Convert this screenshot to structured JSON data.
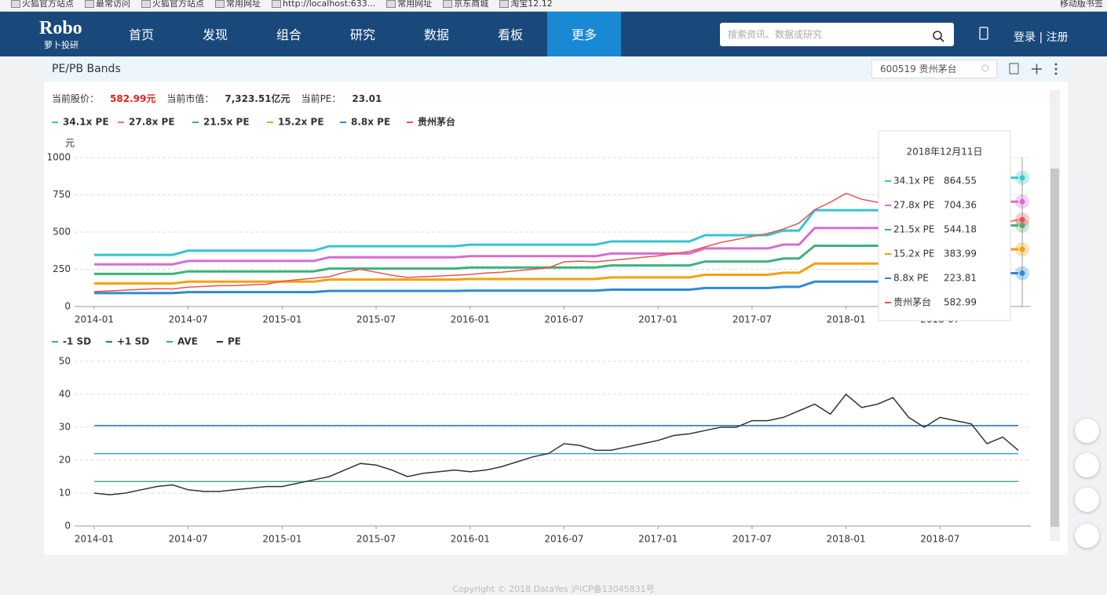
{
  "bookmarks": {
    "items": [
      "火狐官方站点",
      "最常访问",
      "火狐官方站点",
      "常用网址",
      "http://localhost:633...",
      "常用网址",
      "京东商城",
      "淘宝12.12"
    ],
    "right": "移动版书签"
  },
  "nav": {
    "logo": "Robo",
    "logo_sub": "萝卜投研",
    "items": [
      "首页",
      "发现",
      "组合",
      "研究",
      "数据",
      "看板",
      "更多"
    ],
    "search_placeholder": "搜索资讯、数据或研究",
    "login": "登录",
    "separator": "|",
    "register": "注册"
  },
  "panel": {
    "title": "PE/PB Bands",
    "stock": "600519 贵州茅台",
    "info": [
      {
        "label": "当前股价：",
        "value": "582.99元"
      },
      {
        "label": "当前市值：",
        "value": "7,323.51亿元"
      },
      {
        "label": "当前PE：",
        "value": "23.01"
      }
    ]
  },
  "chart_data": [
    {
      "type": "line",
      "ylabel": "元",
      "grid": true,
      "legend": "top-left",
      "tooltip_title": "2018年12月11日",
      "categories": [
        "2014-01",
        null,
        null,
        null,
        null,
        null,
        "2014-07",
        null,
        null,
        null,
        null,
        null,
        "2015-01",
        null,
        null,
        null,
        null,
        null,
        "2015-07",
        null,
        null,
        null,
        null,
        null,
        "2016-01",
        null,
        null,
        null,
        null,
        null,
        "2016-07",
        null,
        null,
        null,
        null,
        null,
        "2017-01",
        null,
        null,
        null,
        null,
        null,
        "2017-07",
        null,
        null,
        null,
        null,
        null,
        "2018-01",
        null,
        null,
        null,
        null,
        null,
        "2018-07",
        null,
        null,
        null,
        null,
        null
      ],
      "ylim": [
        0,
        1000
      ],
      "yticks": [
        0,
        250,
        500,
        750,
        1000
      ],
      "series": [
        {
          "name": "34.1x PE",
          "color": "#36c5cb",
          "values": [
            347,
            347,
            347,
            347,
            347,
            347,
            375,
            375,
            375,
            375,
            375,
            375,
            375,
            375,
            375,
            405,
            405,
            405,
            405,
            405,
            405,
            405,
            405,
            405,
            415,
            415,
            415,
            415,
            415,
            415,
            415,
            415,
            415,
            437,
            437,
            437,
            437,
            437,
            437,
            479,
            479,
            479,
            479,
            479,
            510,
            510,
            647,
            647,
            647,
            647,
            647,
            647,
            864.55,
            864.55,
            864.55,
            864.55,
            864.55,
            864.55,
            864.55,
            864.55
          ]
        },
        {
          "name": "27.8x PE",
          "color": "#d66dd1",
          "values": [
            283,
            283,
            283,
            283,
            283,
            283,
            306,
            306,
            306,
            306,
            306,
            306,
            306,
            306,
            306,
            330,
            330,
            330,
            330,
            330,
            330,
            330,
            330,
            330,
            338,
            338,
            338,
            338,
            338,
            338,
            338,
            338,
            338,
            356,
            356,
            356,
            356,
            356,
            356,
            390,
            390,
            390,
            390,
            390,
            416,
            416,
            527,
            527,
            527,
            527,
            527,
            527,
            704.36,
            704.36,
            704.36,
            704.36,
            704.36,
            704.36,
            704.36,
            704.36
          ]
        },
        {
          "name": "21.5x PE",
          "color": "#3cb37a",
          "values": [
            219,
            219,
            219,
            219,
            219,
            219,
            236,
            236,
            236,
            236,
            236,
            236,
            236,
            236,
            236,
            255,
            255,
            255,
            255,
            255,
            255,
            255,
            255,
            255,
            262,
            262,
            262,
            262,
            262,
            262,
            262,
            262,
            262,
            276,
            276,
            276,
            276,
            276,
            276,
            302,
            302,
            302,
            302,
            302,
            322,
            322,
            408,
            408,
            408,
            408,
            408,
            408,
            544.18,
            544.18,
            544.18,
            544.18,
            544.18,
            544.18,
            544.18,
            544.18
          ]
        },
        {
          "name": "15.2x PE",
          "color": "#f5a00c",
          "values": [
            155,
            155,
            155,
            155,
            155,
            155,
            167,
            167,
            167,
            167,
            167,
            167,
            167,
            167,
            167,
            181,
            181,
            181,
            181,
            181,
            181,
            181,
            181,
            181,
            185,
            185,
            185,
            185,
            185,
            185,
            185,
            185,
            185,
            195,
            195,
            195,
            195,
            195,
            195,
            213,
            213,
            213,
            213,
            213,
            227,
            227,
            288,
            288,
            288,
            288,
            288,
            288,
            383.99,
            383.99,
            383.99,
            383.99,
            383.99,
            383.99,
            383.99,
            383.99
          ]
        },
        {
          "name": "8.8x PE",
          "color": "#2d8ad6",
          "values": [
            90,
            90,
            90,
            90,
            90,
            90,
            97,
            97,
            97,
            97,
            97,
            97,
            97,
            97,
            97,
            105,
            105,
            105,
            105,
            105,
            105,
            105,
            105,
            105,
            107,
            107,
            107,
            107,
            107,
            107,
            107,
            107,
            107,
            113,
            113,
            113,
            113,
            113,
            113,
            124,
            124,
            124,
            124,
            124,
            132,
            132,
            167,
            167,
            167,
            167,
            167,
            167,
            223.81,
            223.81,
            223.81,
            223.81,
            223.81,
            223.81,
            223.81,
            223.81
          ]
        },
        {
          "name": "贵州茅台",
          "color": "#e9524f",
          "values": [
            100,
            105,
            110,
            115,
            120,
            118,
            130,
            135,
            140,
            140,
            145,
            150,
            170,
            180,
            190,
            200,
            230,
            250,
            230,
            210,
            195,
            200,
            205,
            210,
            215,
            225,
            230,
            240,
            250,
            260,
            300,
            305,
            300,
            310,
            320,
            330,
            340,
            355,
            370,
            400,
            430,
            450,
            470,
            490,
            520,
            560,
            650,
            700,
            760,
            720,
            700,
            700,
            730,
            750,
            720,
            710,
            700,
            560,
            560,
            582.99
          ]
        }
      ]
    },
    {
      "type": "line",
      "grid": true,
      "legend": "top-left",
      "categories": [
        "2014-01",
        null,
        null,
        null,
        null,
        null,
        "2014-07",
        null,
        null,
        null,
        null,
        null,
        "2015-01",
        null,
        null,
        null,
        null,
        null,
        "2015-07",
        null,
        null,
        null,
        null,
        null,
        "2016-01",
        null,
        null,
        null,
        null,
        null,
        "2016-07",
        null,
        null,
        null,
        null,
        null,
        "2017-01",
        null,
        null,
        null,
        null,
        null,
        "2017-07",
        null,
        null,
        null,
        null,
        null,
        "2018-01",
        null,
        null,
        null,
        null,
        null,
        "2018-07",
        null,
        null,
        null,
        null,
        null
      ],
      "ylim": [
        0,
        50
      ],
      "yticks": [
        0,
        10,
        20,
        30,
        40,
        50
      ],
      "series": [
        {
          "name": "-1 SD",
          "color": "#4aa88a",
          "value": 13.5
        },
        {
          "name": "+1 SD",
          "color": "#1f6fb0",
          "value": 30.5
        },
        {
          "name": "AVE",
          "color": "#3fa0d8",
          "value": 22
        },
        {
          "name": "PE",
          "color": "#333333",
          "values": [
            10,
            9.5,
            10,
            11,
            12,
            12.5,
            11,
            10.5,
            10.5,
            11,
            11.5,
            12,
            12,
            13,
            14,
            15,
            17,
            19,
            18.5,
            17,
            15,
            16,
            16.5,
            17,
            16.5,
            17,
            18,
            19.5,
            21,
            22,
            25,
            24.5,
            23,
            23,
            24,
            25,
            26,
            27.5,
            28,
            29,
            30,
            30,
            32,
            32,
            33,
            35,
            37,
            34,
            40,
            36,
            37,
            39,
            33,
            30,
            33,
            32,
            31,
            25,
            27,
            23
          ]
        }
      ]
    }
  ],
  "footer": "Copyright © 2018 DataYes 沪ICP备13045831号"
}
